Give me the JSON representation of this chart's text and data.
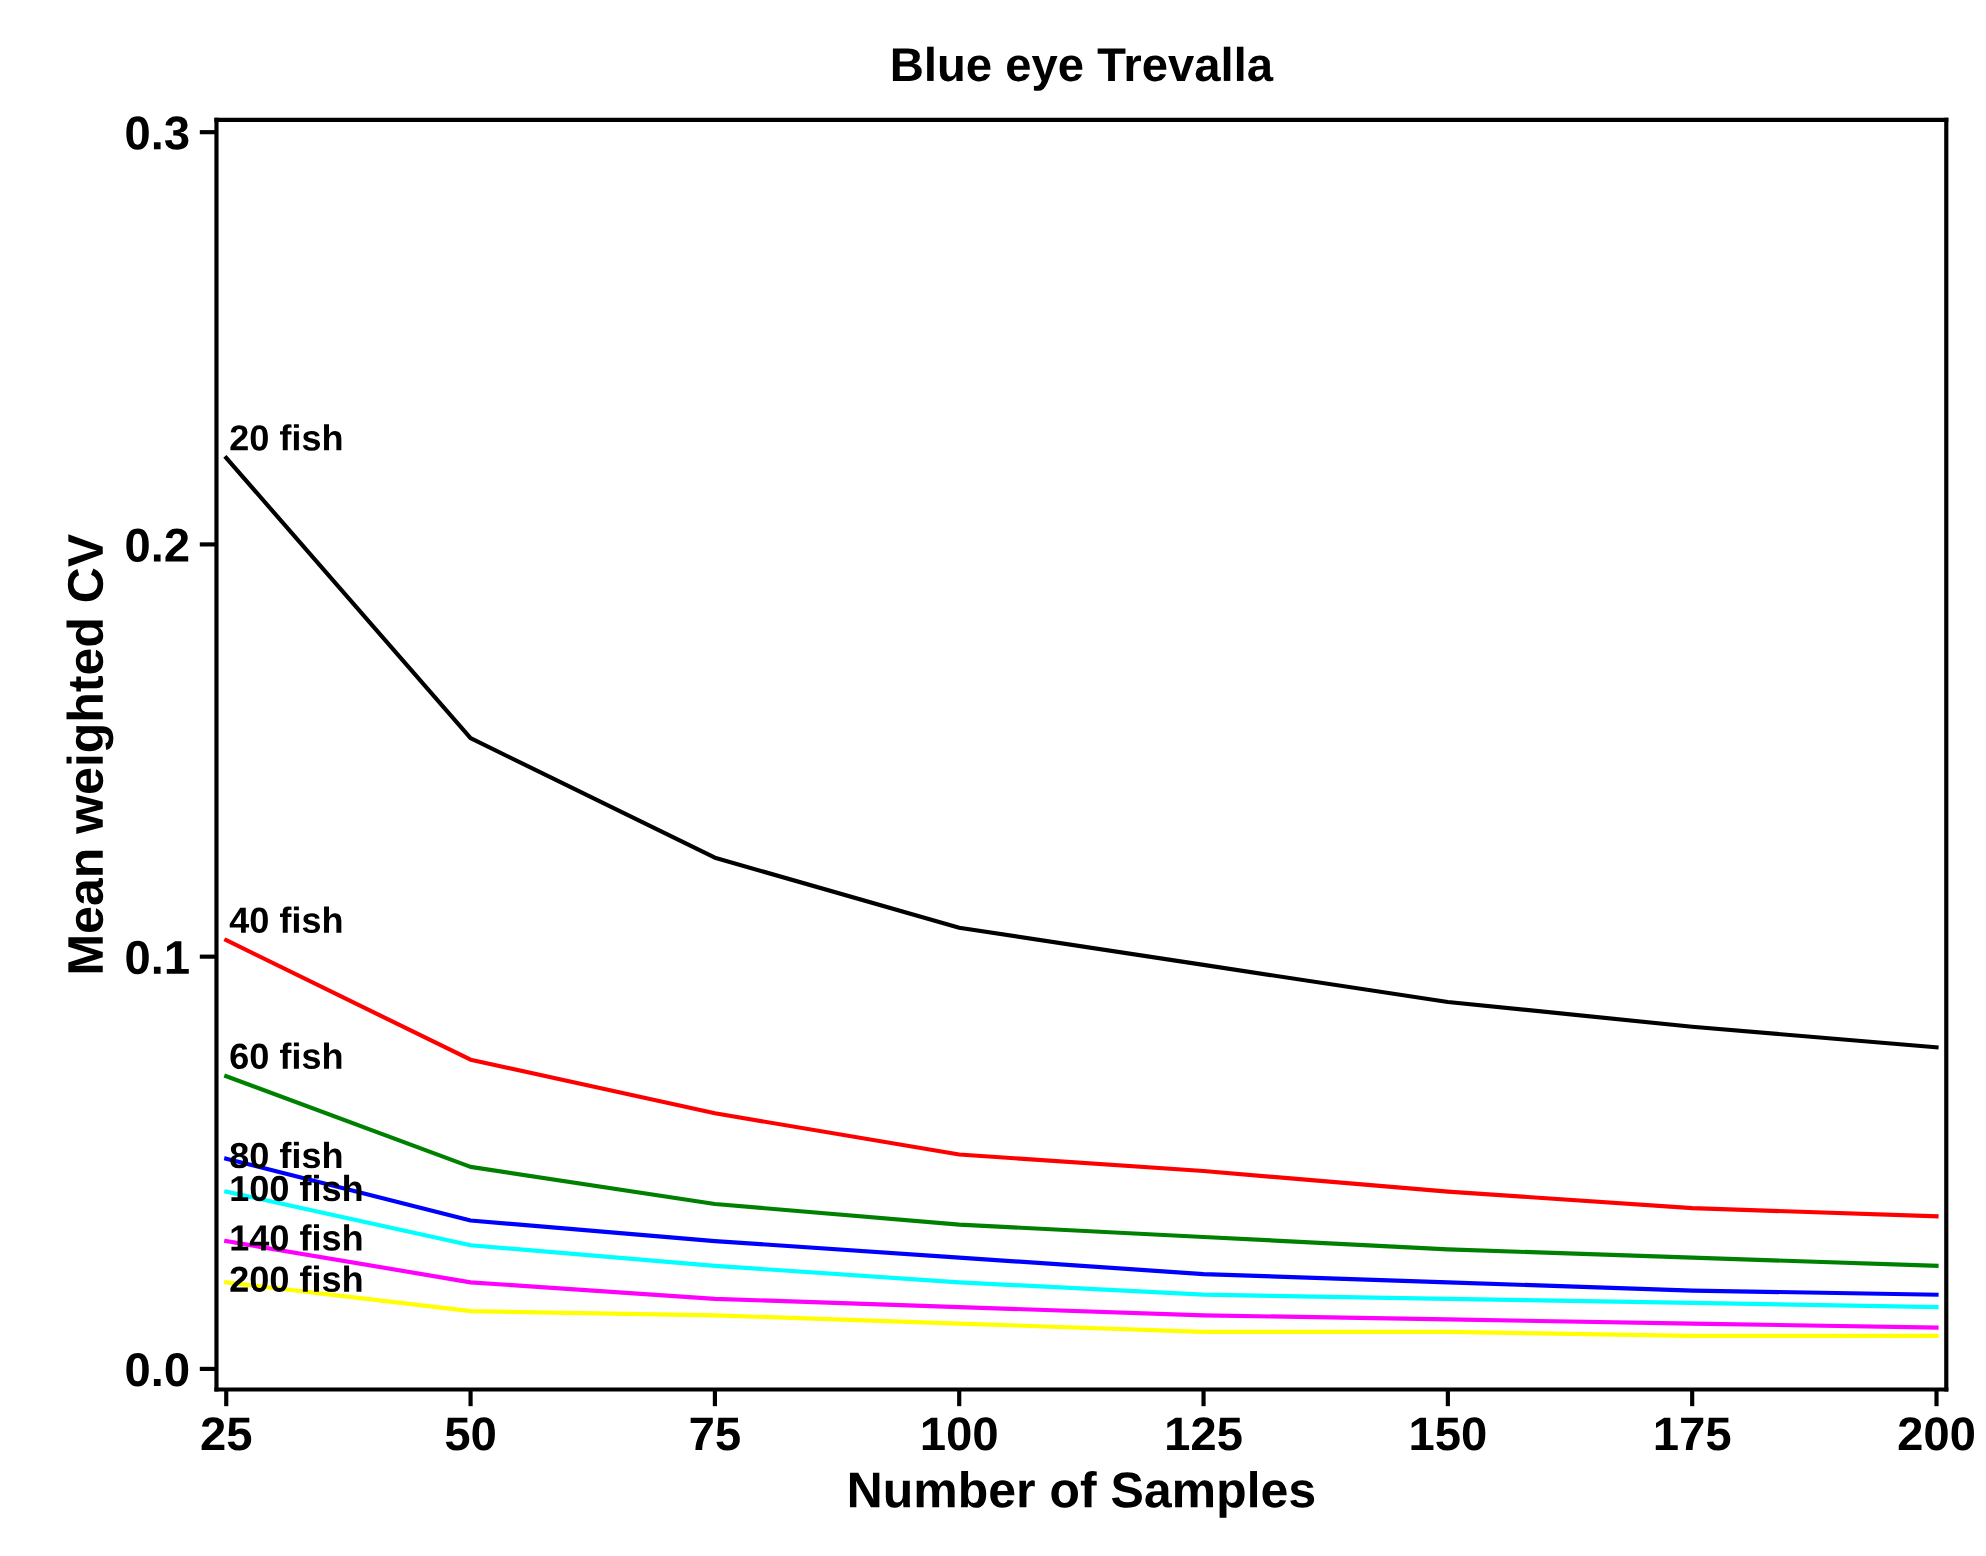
{
  "chart_data": {
    "type": "line",
    "title": "Blue eye Trevalla",
    "xlabel": "Number of Samples",
    "ylabel": "Mean weighted CV",
    "x": [
      25,
      50,
      75,
      100,
      125,
      150,
      175,
      200
    ],
    "series": [
      {
        "name": "20 fish",
        "color": "#000000",
        "values": [
          0.221,
          0.153,
          0.124,
          0.107,
          0.098,
          0.089,
          0.083,
          0.078
        ]
      },
      {
        "name": "40 fish",
        "color": "#ff0000",
        "values": [
          0.104,
          0.075,
          0.062,
          0.052,
          0.048,
          0.043,
          0.039,
          0.037
        ]
      },
      {
        "name": "60 fish",
        "color": "#008000",
        "values": [
          0.071,
          0.049,
          0.04,
          0.035,
          0.032,
          0.029,
          0.027,
          0.025
        ]
      },
      {
        "name": "80 fish",
        "color": "#0000ff",
        "values": [
          0.051,
          0.036,
          0.031,
          0.027,
          0.023,
          0.021,
          0.019,
          0.018
        ]
      },
      {
        "name": "100 fish",
        "color": "#00ffff",
        "values": [
          0.043,
          0.03,
          0.025,
          0.021,
          0.018,
          0.017,
          0.016,
          0.015
        ]
      },
      {
        "name": "140 fish",
        "color": "#ff00ff",
        "values": [
          0.031,
          0.021,
          0.017,
          0.015,
          0.013,
          0.012,
          0.011,
          0.01
        ]
      },
      {
        "name": "200 fish",
        "color": "#ffff00",
        "values": [
          0.021,
          0.014,
          0.013,
          0.011,
          0.009,
          0.009,
          0.008,
          0.008
        ]
      }
    ],
    "xlim": [
      24,
      201
    ],
    "ylim": [
      -0.005,
      0.303
    ],
    "xticks": [
      25,
      50,
      75,
      100,
      125,
      150,
      175,
      200
    ],
    "yticks": [
      {
        "value": 0.0,
        "label": "0.0"
      },
      0.1,
      0.2,
      0.3
    ],
    "grid": false,
    "legend": false,
    "marker": "none",
    "line_style": "solid"
  }
}
